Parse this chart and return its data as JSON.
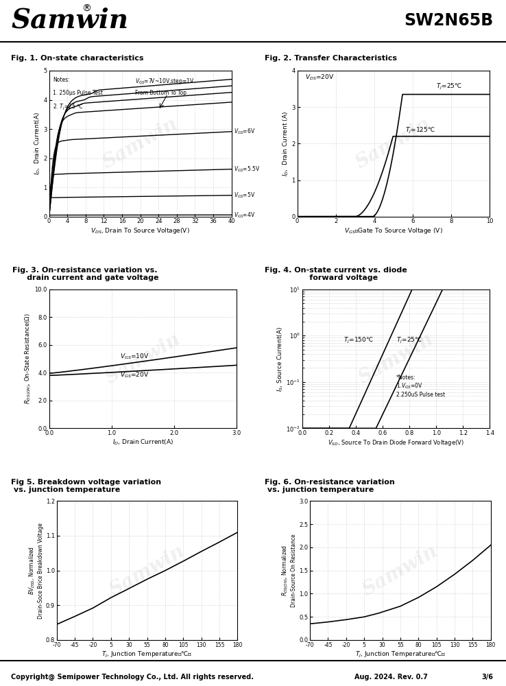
{
  "title_left": "Samwin",
  "title_right": "SW2N65B",
  "fig1_title": "Fig. 1. On-state characteristics",
  "fig2_title": "Fig. 2. Transfer Characteristics",
  "fig3_title": "Fig. 3. On-resistance variation vs.\n      drain current and gate voltage",
  "fig4_title": "Fig. 4. On-state current vs. diode\n      forward voltage",
  "fig5_title": "Fig 5. Breakdown voltage variation\n vs. junction temperature",
  "fig6_title": "Fig. 6. On-resistance variation\n vs. junction temperature",
  "footer_left": "Copyright@ Semipower Technology Co., Ltd. All rights reserved.",
  "footer_right": "Aug. 2024. Rev. 0.7",
  "footer_page": "3/6",
  "watermark": "Samwin",
  "fig1_note1": "Notes:",
  "fig1_note2": "1. 250μs Pulse Test",
  "fig1_note3": "2. Tⱼ=25 ℃",
  "fig1_vgs_note": "V₂=7V~10V,step=1V\nFrom Bottom To Top",
  "fig1_xlim": [
    0,
    40
  ],
  "fig1_ylim": [
    0,
    5
  ],
  "fig1_xticks": [
    0,
    4,
    8,
    12,
    16,
    20,
    24,
    28,
    32,
    36,
    40
  ],
  "fig1_yticks": [
    0,
    1,
    2,
    3,
    4,
    5
  ],
  "fig1_xlabel": "V₂ₛ, Drain To Source Voltage(V)",
  "fig1_ylabel": "I₂,  Drain Current(A)",
  "fig2_xlim": [
    0,
    10
  ],
  "fig2_ylim": [
    0,
    4
  ],
  "fig2_xticks": [
    0,
    2,
    4,
    6,
    8,
    10
  ],
  "fig2_yticks": [
    0,
    1,
    2,
    3,
    4
  ],
  "fig2_xlabel": "VGS， Gate To Source Voltage (V)",
  "fig2_ylabel": "I₂,  Drain Current (A)",
  "fig3_xlim": [
    0.0,
    3.0
  ],
  "fig3_ylim": [
    0.0,
    10.0
  ],
  "fig3_xlabel": "I₂, Drain Current(A)",
  "fig3_ylabel": "R₂ₛ₍ₒₙ₎, On-State Resistance(Ω)",
  "fig4_xlim": [
    0.0,
    1.4
  ],
  "fig4_ylim_log": [
    -2,
    1
  ],
  "fig4_xlabel": "Vₛ₂, Source To Drain Diode Forward Voltage(V)",
  "fig4_ylabel": "Iₛ, Source Current(A)",
  "fig5_xlim": [
    -70,
    180
  ],
  "fig5_ylim": [
    0.8,
    1.2
  ],
  "fig5_xlabel": "Tⱼ, Junction Temperature （℃）",
  "fig5_ylabel": "BV₂ₛₛ, Normalized\nDrain-Soce Brice Breakdown Voltage",
  "fig5_xticks": [
    -70,
    -45,
    -20,
    5,
    30,
    55,
    80,
    105,
    130,
    155,
    180
  ],
  "fig5_yticks": [
    0.8,
    0.9,
    1.0,
    1.1,
    1.2
  ],
  "fig6_xlim": [
    -70,
    180
  ],
  "fig6_ylim": [
    0.0,
    3.0
  ],
  "fig6_xlabel": "Tⱼ, Junction Temperature （℃）",
  "fig6_ylabel": "R₂ₛ₍ₒₙ₎, Normalized\nDrain-Source On Resistance",
  "fig6_xticks": [
    -70,
    -45,
    -20,
    5,
    30,
    55,
    80,
    105,
    130,
    155,
    180
  ],
  "fig6_yticks": [
    0.0,
    0.5,
    1.0,
    1.5,
    2.0,
    2.5,
    3.0
  ],
  "grid_color": "#bbbbbb",
  "grid_linestyle": ":",
  "line_color": "#000000",
  "line_width": 1.2
}
